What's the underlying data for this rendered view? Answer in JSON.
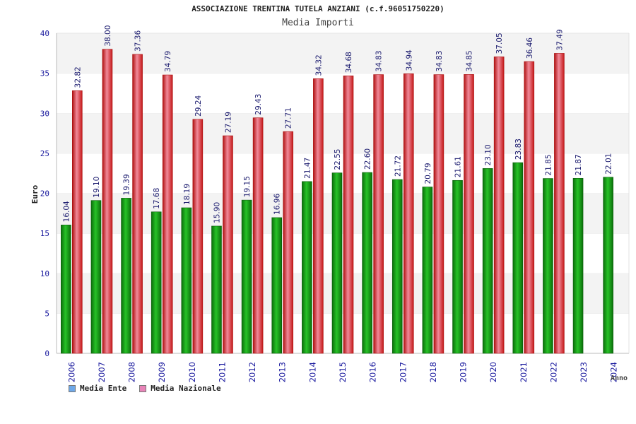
{
  "chart_data": {
    "type": "bar",
    "title": "ASSOCIAZIONE TRENTINA TUTELA ANZIANI (c.f.96051750220)",
    "subtitle": "Media Importi",
    "xlabel": "Anno",
    "ylabel": "Euro",
    "ylim": [
      0,
      40
    ],
    "yticks": [
      0,
      5,
      10,
      15,
      20,
      25,
      30,
      35,
      40
    ],
    "categories": [
      "2006",
      "2007",
      "2008",
      "2009",
      "2010",
      "2011",
      "2012",
      "2013",
      "2014",
      "2015",
      "2016",
      "2017",
      "2018",
      "2019",
      "2020",
      "2021",
      "2022",
      "2023",
      "2024"
    ],
    "series": [
      {
        "name": "Media Ente",
        "color": "#1fa01f",
        "legend_color": "#6fa8e8",
        "values": [
          16.04,
          19.1,
          19.39,
          17.68,
          18.19,
          15.9,
          19.15,
          16.96,
          21.47,
          22.55,
          22.6,
          21.72,
          20.79,
          21.61,
          23.1,
          23.83,
          21.85,
          21.87,
          22.01
        ],
        "labels": [
          "16.04",
          "19.10",
          "19.39",
          "17.68",
          "18.19",
          "15.90",
          "19.15",
          "16.96",
          "21.47",
          "22.55",
          "22.60",
          "21.72",
          "20.79",
          "21.61",
          "23.10",
          "23.83",
          "21.85",
          "21.87",
          "22.01"
        ]
      },
      {
        "name": "Media Nazionale",
        "color": "#e02020",
        "legend_color": "#e884b8",
        "values": [
          32.82,
          38.0,
          37.36,
          34.79,
          29.24,
          27.19,
          29.43,
          27.71,
          34.32,
          34.68,
          34.83,
          34.94,
          34.83,
          34.85,
          37.05,
          36.46,
          37.49,
          null,
          null
        ],
        "labels": [
          "32.82",
          "38.00",
          "37.36",
          "34.79",
          "29.24",
          "27.19",
          "29.43",
          "27.71",
          "34.32",
          "34.68",
          "34.83",
          "34.94",
          "34.83",
          "34.85",
          "37.05",
          "36.46",
          "37.49",
          null,
          null
        ]
      }
    ],
    "grid": true,
    "legend": "bottom-left"
  }
}
